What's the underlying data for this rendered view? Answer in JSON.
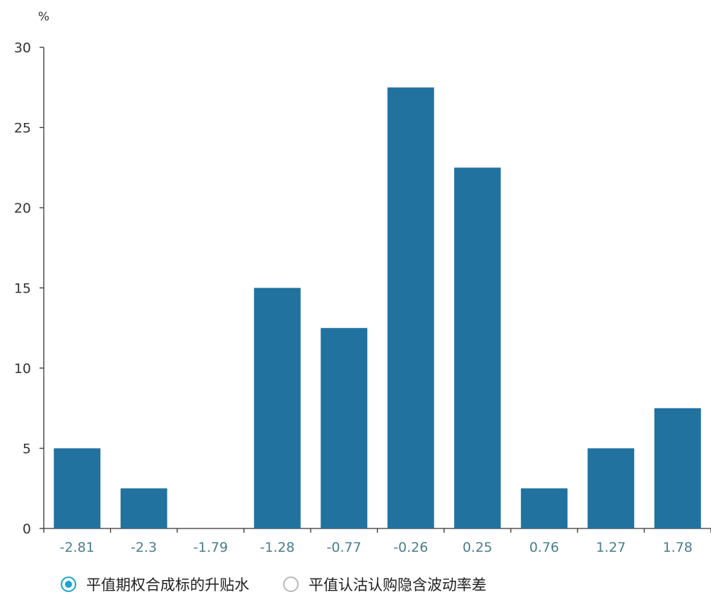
{
  "chart_data": {
    "type": "bar",
    "ylabel": "%",
    "ylim": [
      0,
      30
    ],
    "yticks": [
      "0",
      "5",
      "10",
      "15",
      "20",
      "25",
      "30"
    ],
    "categories": [
      "-2.81",
      "-2.3",
      "-1.79",
      "-1.28",
      "-0.77",
      "-0.26",
      "0.25",
      "0.76",
      "1.27",
      "1.78"
    ],
    "values": [
      5,
      2.5,
      0,
      15,
      12.5,
      27.5,
      22.5,
      2.5,
      5,
      7.5
    ],
    "grid": false,
    "legend_placement": "bottom"
  },
  "colors": {
    "bar": "#21729e",
    "axis": "#333333",
    "tick_label": "#4a7d8c",
    "radio_active": "#17a7c8",
    "radio_inactive": "#b8b8b8"
  },
  "legend": {
    "items": [
      {
        "label": "平值期权合成标的升贴水",
        "selected": true
      },
      {
        "label": "平值认沽认购隐含波动率差",
        "selected": false
      }
    ]
  }
}
